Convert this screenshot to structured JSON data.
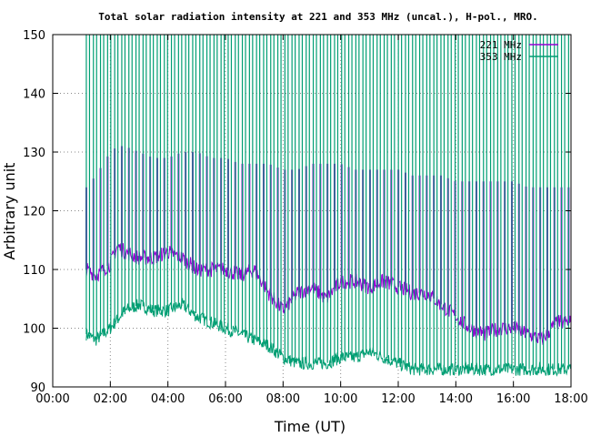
{
  "chart_data": {
    "type": "line",
    "title": "Total solar radiation intensity at 221 and 353 MHz (uncal.), H-pol., MRO.",
    "xlabel": "Time (UT)",
    "ylabel": "Arbitrary unit",
    "xlim": [
      "00:00",
      "18:00"
    ],
    "ylim": [
      90,
      150
    ],
    "grid": true,
    "legend_position": "top-right",
    "x_ticks": [
      "00:00",
      "02:00",
      "04:00",
      "06:00",
      "08:00",
      "10:00",
      "12:00",
      "14:00",
      "16:00",
      "18:00"
    ],
    "y_ticks": [
      "90",
      "100",
      "110",
      "120",
      "130",
      "140",
      "150"
    ],
    "series": [
      {
        "name": "221 MHz",
        "color": "#9400d3",
        "x": [
          "01:10",
          "01:30",
          "02:00",
          "02:15",
          "02:30",
          "03:00",
          "03:30",
          "04:00",
          "04:30",
          "05:00",
          "05:30",
          "06:00",
          "06:30",
          "07:00",
          "07:30",
          "08:00",
          "08:30",
          "09:00",
          "09:30",
          "10:00",
          "10:30",
          "11:00",
          "11:30",
          "12:00",
          "12:30",
          "13:00",
          "13:30",
          "14:00",
          "14:30",
          "15:00",
          "15:30",
          "16:00",
          "16:30",
          "17:00",
          "17:30",
          "18:00"
        ],
        "values": [
          110,
          109,
          111,
          114,
          113,
          112,
          112,
          113,
          112,
          110,
          110,
          110,
          109,
          110,
          106,
          103,
          106,
          107,
          105,
          108,
          108,
          107,
          108,
          107,
          106,
          106,
          104,
          102,
          100,
          99,
          100,
          100,
          99,
          98,
          101,
          101
        ],
        "peaks": [
          124,
          126,
          130,
          131,
          131,
          130,
          129,
          129,
          130,
          130,
          129,
          129,
          128,
          128,
          128,
          127,
          127,
          128,
          128,
          128,
          127,
          127,
          127,
          127,
          126,
          126,
          126,
          125,
          125,
          125,
          125,
          125,
          124,
          124,
          124,
          124
        ]
      },
      {
        "name": "353 MHz",
        "color": "#009e73",
        "x": [
          "01:10",
          "01:30",
          "02:00",
          "02:30",
          "03:00",
          "03:30",
          "04:00",
          "04:30",
          "05:00",
          "05:30",
          "06:00",
          "06:30",
          "07:00",
          "07:30",
          "08:00",
          "08:30",
          "09:00",
          "09:30",
          "10:00",
          "10:30",
          "11:00",
          "11:30",
          "12:00",
          "12:30",
          "13:00",
          "13:30",
          "14:00",
          "14:30",
          "15:00",
          "15:30",
          "16:00",
          "16:30",
          "17:00",
          "17:30",
          "18:00"
        ],
        "values": [
          99,
          98,
          100,
          103,
          104,
          103,
          103,
          104,
          102,
          101,
          100,
          99,
          98,
          97,
          95,
          94,
          94,
          94,
          95,
          95,
          96,
          95,
          94,
          93,
          93,
          93,
          93,
          93,
          93,
          93,
          93,
          93,
          93,
          93,
          93
        ],
        "spikes_to": 150
      }
    ]
  }
}
